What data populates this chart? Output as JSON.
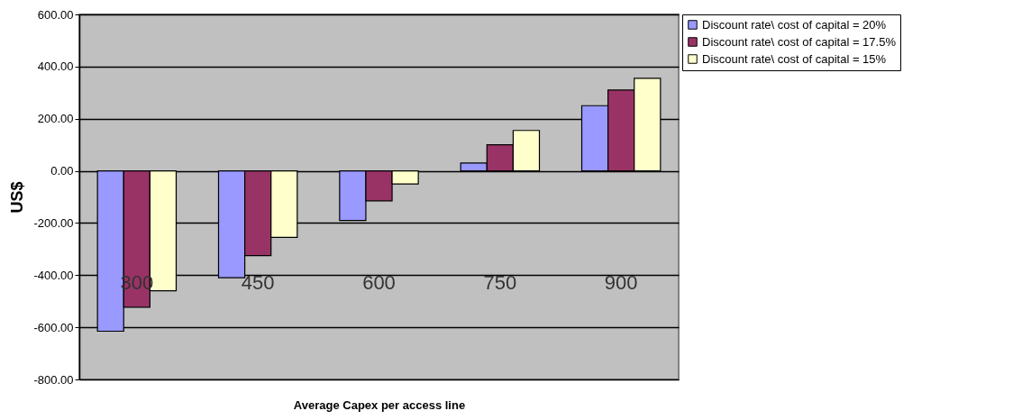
{
  "chart_data": {
    "type": "bar",
    "xlabel": "Average Capex per access line",
    "ylabel": "US$",
    "categories": [
      "300",
      "450",
      "600",
      "750",
      "900"
    ],
    "series": [
      {
        "name": "Discount rate\\ cost of capital = 20%",
        "color": "#9999ff",
        "values": [
          -615,
          -410,
          -190,
          30,
          250
        ]
      },
      {
        "name": "Discount rate\\ cost of capital = 17.5%",
        "color": "#993366",
        "values": [
          -523,
          -325,
          -115,
          100,
          310
        ]
      },
      {
        "name": "Discount rate\\ cost of capital = 15%",
        "color": "#ffffcc",
        "values": [
          -460,
          -255,
          -50,
          155,
          355
        ]
      }
    ],
    "ylim": [
      -800,
      600
    ],
    "yticks": [
      {
        "value": -800,
        "label": "-800.00"
      },
      {
        "value": -600,
        "label": "-600.00"
      },
      {
        "value": -400,
        "label": "-400.00"
      },
      {
        "value": -200,
        "label": "-200.00"
      },
      {
        "value": 0,
        "label": "0.00"
      },
      {
        "value": 200,
        "label": "200.00"
      },
      {
        "value": 400,
        "label": "400.00"
      },
      {
        "value": 600,
        "label": "600.00"
      }
    ],
    "grid": "y",
    "legend": "right"
  }
}
